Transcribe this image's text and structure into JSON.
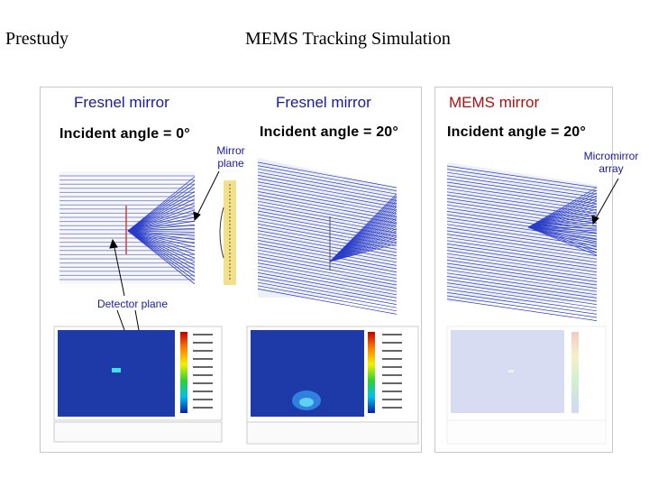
{
  "header": {
    "left_title": "Prestudy",
    "main_title": "MEMS Tracking Simulation"
  },
  "panels": [
    {
      "title": "Fresnel mirror",
      "angle": "Incident angle = 0°",
      "title_color": "#1a1aa0"
    },
    {
      "title": "Fresnel mirror",
      "angle": "Incident angle = 20°",
      "title_color": "#1a1aa0"
    },
    {
      "title": "MEMS mirror",
      "angle": "Incident angle = 20°",
      "title_color": "#b01010"
    }
  ],
  "annotations": {
    "mirror_plane_1": "Mirror",
    "mirror_plane_2": "plane",
    "micromirror_1": "Micromirror",
    "micromirror_2": "array",
    "detector_plane": "Detector plane"
  },
  "colors": {
    "ray": "#2a3dc8",
    "detector_bg": "#1d3aa8",
    "highlight": "#f3e08a"
  }
}
